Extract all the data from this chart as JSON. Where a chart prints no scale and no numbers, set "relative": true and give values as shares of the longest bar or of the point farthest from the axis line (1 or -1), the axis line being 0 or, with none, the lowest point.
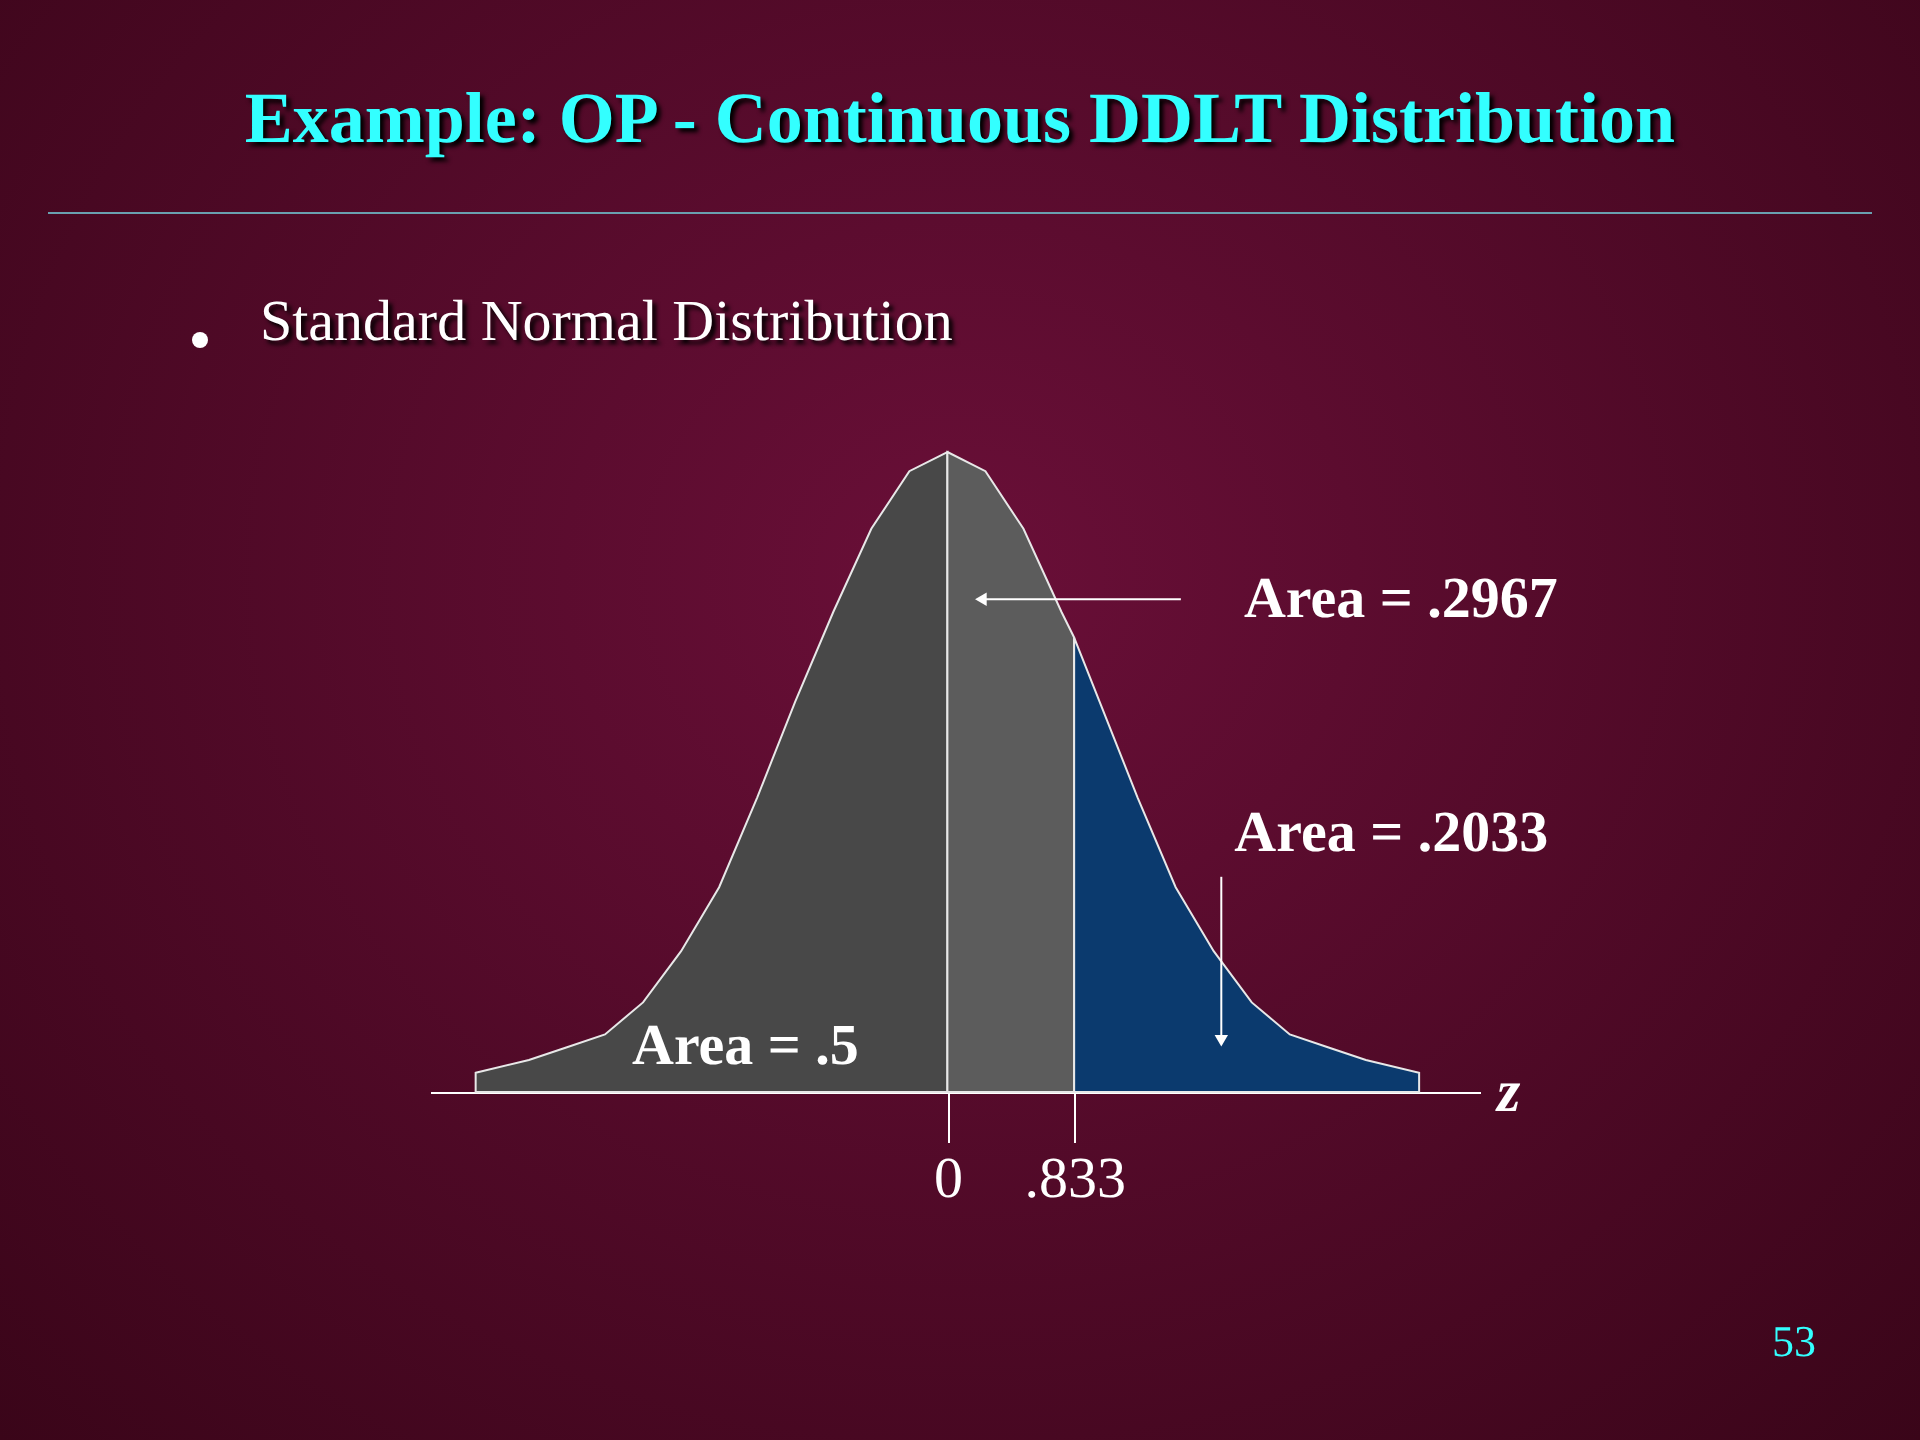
{
  "chart_data": {
    "type": "area",
    "title": "Example: OP - Continuous DDLT Distribution",
    "subtitle": "Standard Normal Distribution",
    "xlabel": "z",
    "relative": true,
    "grid": false,
    "xlim": [
      -3.4,
      3.5
    ],
    "xticks": [
      0,
      {
        "value": 0.833,
        "label": ".833"
      }
    ],
    "series": [
      {
        "color": "#484848",
        "x": [
          -3.1,
          -2.75,
          -2.5,
          -2.25,
          -2,
          -1.75,
          -1.5,
          -1.25,
          -1,
          -0.75,
          -0.5,
          -0.25,
          0
        ],
        "values": [
          0.03,
          0.05,
          0.07,
          0.09,
          0.14,
          0.22,
          0.32,
          0.46,
          0.61,
          0.75,
          0.88,
          0.97,
          1
        ]
      },
      {
        "color": "#5c5c5c",
        "x": [
          0,
          0.25,
          0.5,
          0.75,
          0.833
        ],
        "values": [
          1,
          0.97,
          0.88,
          0.75,
          0.71
        ]
      },
      {
        "color": "#0b3a6e",
        "x": [
          0.833,
          1,
          1.25,
          1.5,
          1.75,
          2,
          2.25,
          2.5,
          2.75,
          3.1
        ],
        "values": [
          0.71,
          0.61,
          0.46,
          0.32,
          0.22,
          0.14,
          0.09,
          0.07,
          0.05,
          0.03
        ]
      }
    ],
    "annotations": [
      {
        "text": "Area = .2967",
        "x": 0.22,
        "y": 0.77
      },
      {
        "text": "Area = .2033",
        "x": 1.8,
        "y": 0.08
      },
      "Area = .5",
      "53"
    ]
  }
}
